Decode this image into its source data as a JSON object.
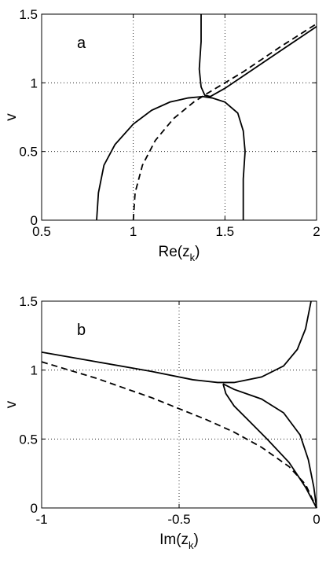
{
  "chart_data": [
    {
      "type": "line",
      "panel_label": "a",
      "xlabel": [
        "Re(z",
        "k",
        ")"
      ],
      "ylabel": "v",
      "xlim": [
        0.5,
        2
      ],
      "ylim": [
        0,
        1.5
      ],
      "xticks": [
        0.5,
        1,
        1.5,
        2
      ],
      "yticks": [
        0,
        0.5,
        1,
        1.5
      ],
      "grid": true,
      "series": [
        {
          "color": "#000000",
          "linestyle": "solid",
          "x": [
            0.8,
            0.81,
            0.84,
            0.9,
            1.0,
            1.1,
            1.2,
            1.3,
            1.38
          ],
          "values": [
            0,
            0.2,
            0.4,
            0.55,
            0.7,
            0.8,
            0.86,
            0.89,
            0.9
          ]
        },
        {
          "color": "#000000",
          "linestyle": "solid",
          "x": [
            1.6,
            1.6,
            1.61,
            1.6,
            1.57,
            1.5,
            1.43,
            1.38
          ],
          "values": [
            0,
            0.3,
            0.5,
            0.65,
            0.78,
            0.86,
            0.89,
            0.9
          ]
        },
        {
          "color": "#000000",
          "linestyle": "solid",
          "x": [
            1.37,
            1.37,
            1.36,
            1.37,
            1.39,
            1.42,
            1.5,
            1.6,
            1.8,
            2
          ],
          "values": [
            1.5,
            1.3,
            1.1,
            0.97,
            0.91,
            0.9,
            0.96,
            1.05,
            1.23,
            1.41
          ]
        },
        {
          "color": "#000000",
          "linestyle": "dashed",
          "x": [
            1,
            1.01,
            1.05,
            1.12,
            1.22,
            1.33,
            1.4,
            1.5,
            1.6,
            1.8,
            2
          ],
          "values": [
            0,
            0.2,
            0.4,
            0.58,
            0.74,
            0.86,
            0.92,
            1.0,
            1.08,
            1.26,
            1.43
          ]
        }
      ]
    },
    {
      "type": "line",
      "panel_label": "b",
      "xlabel": [
        "Im(z",
        "k",
        ")"
      ],
      "ylabel": "v",
      "xlim": [
        -1,
        0
      ],
      "ylim": [
        0,
        1.5
      ],
      "xticks": [
        -1,
        -0.5,
        0
      ],
      "yticks": [
        0,
        0.5,
        1,
        1.5
      ],
      "grid": true,
      "series": [
        {
          "color": "#000000",
          "linestyle": "solid",
          "x": [
            -1,
            -0.8,
            -0.6,
            -0.45,
            -0.36,
            -0.3,
            -0.2,
            -0.12,
            -0.07,
            -0.04,
            -0.02
          ],
          "values": [
            1.13,
            1.06,
            0.99,
            0.93,
            0.91,
            0.91,
            0.95,
            1.03,
            1.15,
            1.3,
            1.5
          ]
        },
        {
          "color": "#000000",
          "linestyle": "solid",
          "x": [
            -0.34,
            -0.3,
            -0.2,
            -0.12,
            -0.06,
            -0.03,
            -0.01,
            0
          ],
          "values": [
            0.9,
            0.86,
            0.79,
            0.69,
            0.53,
            0.35,
            0.15,
            0
          ]
        },
        {
          "color": "#000000",
          "linestyle": "solid",
          "x": [
            -0.34,
            -0.33,
            -0.3,
            -0.25,
            -0.18,
            -0.1,
            -0.04,
            0
          ],
          "values": [
            0.9,
            0.83,
            0.74,
            0.64,
            0.5,
            0.33,
            0.15,
            0
          ]
        },
        {
          "color": "#000000",
          "linestyle": "dashed",
          "x": [
            -1,
            -0.8,
            -0.6,
            -0.4,
            -0.3,
            -0.2,
            -0.1,
            -0.04,
            0
          ],
          "values": [
            1.06,
            0.94,
            0.8,
            0.64,
            0.55,
            0.44,
            0.3,
            0.17,
            0
          ]
        }
      ]
    }
  ]
}
